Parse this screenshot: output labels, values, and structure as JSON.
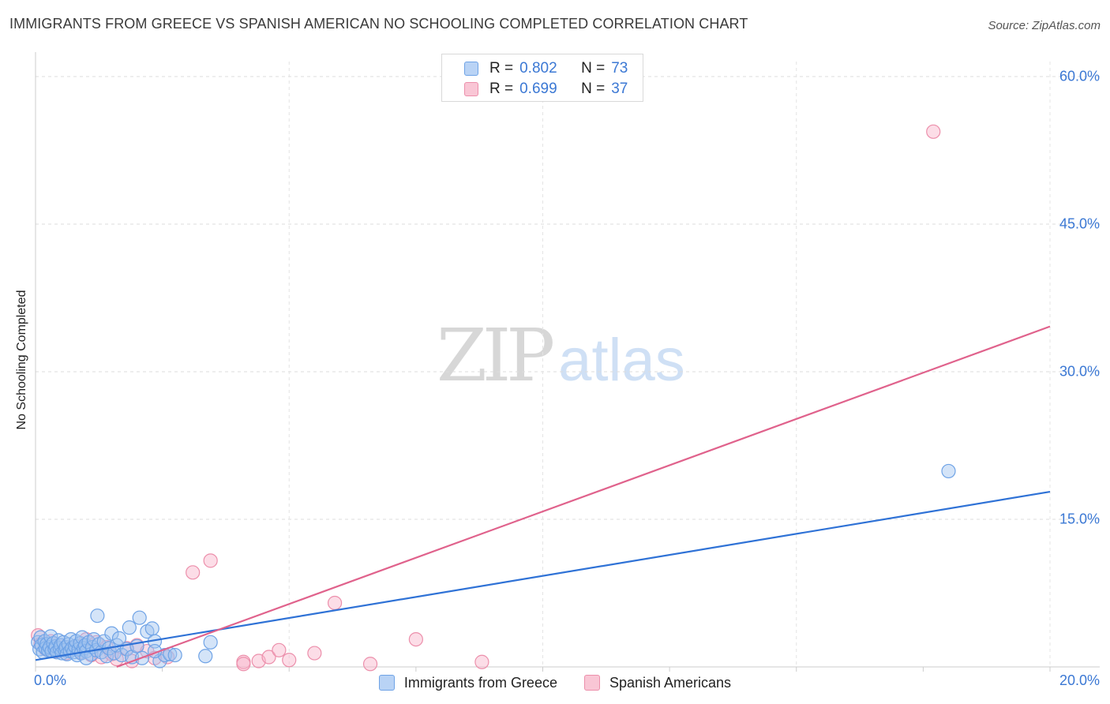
{
  "header": {
    "title": "IMMIGRANTS FROM GREECE VS SPANISH AMERICAN NO SCHOOLING COMPLETED CORRELATION CHART",
    "source": "Source: ZipAtlas.com"
  },
  "watermark": {
    "zip": "ZIP",
    "atlas": "atlas"
  },
  "legend_top": {
    "rows": [
      {
        "r_label": "R =",
        "r_value": "0.802",
        "n_label": "N =",
        "n_value": "73"
      },
      {
        "r_label": "R =",
        "r_value": "0.699",
        "n_label": "N =",
        "n_value": "37"
      }
    ]
  },
  "legend_bottom": {
    "items": [
      {
        "label": "Immigrants from Greece"
      },
      {
        "label": "Spanish Americans"
      }
    ]
  },
  "chart_data": {
    "type": "scatter",
    "title": "IMMIGRANTS FROM GREECE VS SPANISH AMERICAN NO SCHOOLING COMPLETED CORRELATION CHART",
    "xlabel": "",
    "ylabel": "No Schooling Completed",
    "xlim": [
      0,
      20
    ],
    "ylim": [
      0,
      60
    ],
    "x_ticks": [
      "0.0%",
      "20.0%"
    ],
    "y_ticks": [
      "15.0%",
      "30.0%",
      "45.0%",
      "60.0%"
    ],
    "y_tick_values": [
      15,
      30,
      45,
      60
    ],
    "grid": true,
    "legend_position": "top-center",
    "colors": {
      "blue": "#6fa3e6",
      "blue_line": "#2f72d6",
      "pink": "#ec8fab",
      "pink_line": "#e0628c",
      "tick": "#3b78d4"
    },
    "series": [
      {
        "name": "Immigrants from Greece",
        "color": "blue",
        "r": 0.802,
        "n": 73,
        "trend": [
          [
            0,
            0.7
          ],
          [
            20,
            17.8
          ]
        ],
        "points": [
          [
            0.05,
            2.5
          ],
          [
            0.08,
            1.8
          ],
          [
            0.1,
            3.0
          ],
          [
            0.12,
            2.2
          ],
          [
            0.15,
            1.5
          ],
          [
            0.18,
            2.6
          ],
          [
            0.2,
            1.9
          ],
          [
            0.22,
            2.3
          ],
          [
            0.25,
            1.7
          ],
          [
            0.28,
            2.0
          ],
          [
            0.3,
            3.1
          ],
          [
            0.32,
            1.6
          ],
          [
            0.35,
            2.4
          ],
          [
            0.38,
            1.8
          ],
          [
            0.4,
            2.1
          ],
          [
            0.42,
            1.5
          ],
          [
            0.45,
            2.7
          ],
          [
            0.48,
            1.9
          ],
          [
            0.5,
            2.2
          ],
          [
            0.52,
            1.4
          ],
          [
            0.55,
            2.5
          ],
          [
            0.58,
            1.7
          ],
          [
            0.6,
            2.0
          ],
          [
            0.62,
            1.3
          ],
          [
            0.65,
            2.3
          ],
          [
            0.68,
            1.6
          ],
          [
            0.7,
            2.8
          ],
          [
            0.72,
            1.9
          ],
          [
            0.75,
            1.5
          ],
          [
            0.78,
            2.1
          ],
          [
            0.8,
            2.6
          ],
          [
            0.82,
            1.2
          ],
          [
            0.85,
            1.8
          ],
          [
            0.88,
            2.4
          ],
          [
            0.9,
            1.4
          ],
          [
            0.92,
            3.0
          ],
          [
            0.95,
            1.9
          ],
          [
            0.98,
            2.2
          ],
          [
            1.0,
            1.6
          ],
          [
            1.05,
            2.5
          ],
          [
            1.1,
            1.3
          ],
          [
            1.12,
            2.0
          ],
          [
            1.15,
            2.8
          ],
          [
            1.2,
            1.7
          ],
          [
            1.22,
            5.2
          ],
          [
            1.25,
            2.3
          ],
          [
            1.3,
            1.5
          ],
          [
            1.35,
            2.6
          ],
          [
            1.4,
            1.1
          ],
          [
            1.45,
            1.9
          ],
          [
            1.5,
            3.4
          ],
          [
            1.55,
            1.4
          ],
          [
            1.6,
            2.2
          ],
          [
            1.65,
            2.9
          ],
          [
            1.7,
            1.2
          ],
          [
            1.8,
            1.8
          ],
          [
            1.85,
            4.0
          ],
          [
            1.9,
            1.0
          ],
          [
            2.0,
            2.1
          ],
          [
            2.05,
            5.0
          ],
          [
            2.1,
            0.9
          ],
          [
            2.2,
            3.6
          ],
          [
            2.3,
            3.9
          ],
          [
            2.35,
            2.6
          ],
          [
            2.45,
            0.6
          ],
          [
            2.55,
            1.2
          ],
          [
            2.65,
            1.3
          ],
          [
            2.75,
            1.2
          ],
          [
            3.35,
            1.1
          ],
          [
            3.45,
            2.5
          ],
          [
            2.35,
            1.6
          ],
          [
            1.0,
            0.9
          ],
          [
            18.0,
            19.9
          ]
        ]
      },
      {
        "name": "Spanish Americans",
        "color": "pink",
        "r": 0.699,
        "n": 37,
        "trend": [
          [
            1.6,
            0.0
          ],
          [
            20,
            34.6
          ]
        ],
        "points": [
          [
            0.05,
            3.2
          ],
          [
            0.1,
            2.3
          ],
          [
            0.2,
            1.8
          ],
          [
            0.3,
            2.6
          ],
          [
            0.4,
            1.6
          ],
          [
            0.5,
            2.2
          ],
          [
            0.6,
            1.4
          ],
          [
            0.7,
            1.9
          ],
          [
            0.8,
            2.1
          ],
          [
            0.9,
            1.5
          ],
          [
            1.0,
            2.8
          ],
          [
            1.1,
            1.2
          ],
          [
            1.2,
            2.5
          ],
          [
            1.3,
            1.0
          ],
          [
            1.4,
            2.0
          ],
          [
            1.5,
            1.3
          ],
          [
            1.6,
            0.8
          ],
          [
            1.8,
            1.9
          ],
          [
            1.9,
            0.6
          ],
          [
            2.0,
            2.2
          ],
          [
            2.2,
            1.6
          ],
          [
            2.35,
            0.9
          ],
          [
            2.6,
            1.0
          ],
          [
            3.1,
            9.6
          ],
          [
            3.45,
            10.8
          ],
          [
            4.1,
            0.5
          ],
          [
            4.4,
            0.6
          ],
          [
            4.6,
            1.0
          ],
          [
            4.8,
            1.7
          ],
          [
            5.0,
            0.7
          ],
          [
            5.5,
            1.4
          ],
          [
            5.9,
            6.5
          ],
          [
            6.6,
            0.3
          ],
          [
            7.5,
            2.8
          ],
          [
            8.8,
            0.5
          ],
          [
            17.7,
            54.4
          ],
          [
            4.1,
            0.3
          ]
        ]
      }
    ]
  }
}
